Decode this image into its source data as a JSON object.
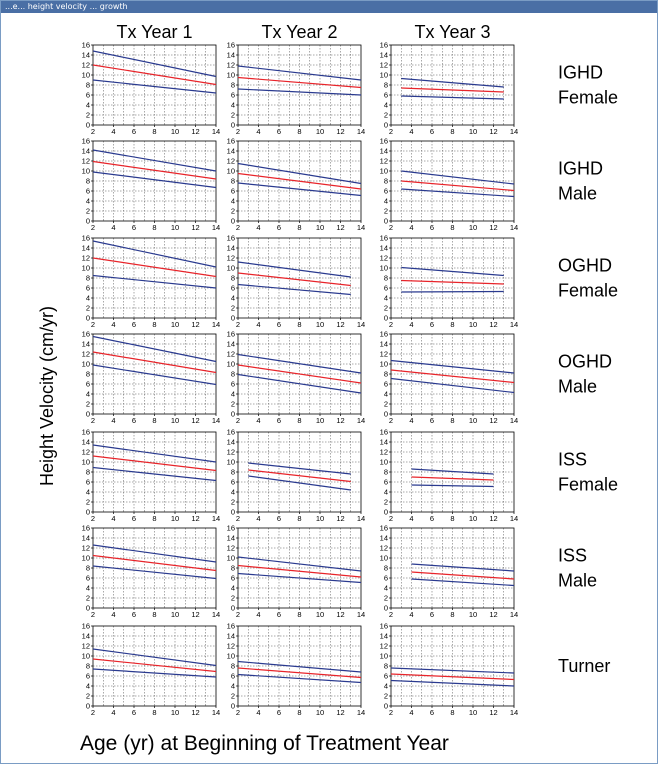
{
  "window": {
    "title": "...e... height velocity ... growth"
  },
  "figure": {
    "y_axis_label": "Height Velocity (cm/yr)",
    "x_axis_label": "Age (yr) at Beginning of Treatment Year",
    "column_titles": [
      "Tx Year 1",
      "Tx Year 2",
      "Tx Year 3"
    ],
    "row_labels": [
      [
        "IGHD",
        "Female"
      ],
      [
        "IGHD",
        "Male"
      ],
      [
        "OGHD",
        "Female"
      ],
      [
        "OGHD",
        "Male"
      ],
      [
        "ISS",
        "Female"
      ],
      [
        "ISS",
        "Male"
      ],
      [
        "Turner"
      ]
    ],
    "line_colors": {
      "median": "#e8242a",
      "bounds": "#2a3a8f",
      "grid": "#555555",
      "axis": "#000000"
    }
  },
  "chart_data": {
    "type": "line",
    "xlim": [
      2,
      14
    ],
    "ylim": [
      0,
      16
    ],
    "x_ticks": [
      2,
      4,
      6,
      8,
      10,
      12,
      14
    ],
    "y_ticks": [
      0,
      2,
      4,
      6,
      8,
      10,
      12,
      14,
      16
    ],
    "grid": true,
    "series_roles": [
      "upper",
      "median",
      "lower"
    ],
    "panels": [
      {
        "row": "IGHD Female",
        "column": "Tx Year 1",
        "x": [
          2,
          14
        ],
        "upper": [
          14.8,
          9.7
        ],
        "median": [
          12.0,
          8.1
        ],
        "lower": [
          9.0,
          6.4
        ]
      },
      {
        "row": "IGHD Female",
        "column": "Tx Year 2",
        "x": [
          2,
          14
        ],
        "upper": [
          11.8,
          9.0
        ],
        "median": [
          9.5,
          7.5
        ],
        "lower": [
          7.2,
          6.0
        ]
      },
      {
        "row": "IGHD Female",
        "column": "Tx Year 3",
        "x": [
          3,
          13
        ],
        "upper": [
          9.3,
          7.6
        ],
        "median": [
          7.4,
          6.6
        ],
        "lower": [
          5.8,
          5.2
        ]
      },
      {
        "row": "IGHD Male",
        "column": "Tx Year 1",
        "x": [
          2,
          14
        ],
        "upper": [
          14.2,
          10.0
        ],
        "median": [
          11.9,
          8.4
        ],
        "lower": [
          9.8,
          6.7
        ]
      },
      {
        "row": "IGHD Male",
        "column": "Tx Year 2",
        "x": [
          2,
          14
        ],
        "upper": [
          11.5,
          7.5
        ],
        "median": [
          9.5,
          6.4
        ],
        "lower": [
          7.6,
          5.1
        ]
      },
      {
        "row": "IGHD Male",
        "column": "Tx Year 3",
        "x": [
          3,
          14
        ],
        "upper": [
          10.0,
          7.4
        ],
        "median": [
          8.0,
          6.1
        ],
        "lower": [
          6.4,
          4.9
        ]
      },
      {
        "row": "OGHD Female",
        "column": "Tx Year 1",
        "x": [
          2,
          14
        ],
        "upper": [
          15.4,
          10.2
        ],
        "median": [
          12.0,
          8.3
        ],
        "lower": [
          8.5,
          6.0
        ]
      },
      {
        "row": "OGHD Female",
        "column": "Tx Year 2",
        "x": [
          2,
          13
        ],
        "upper": [
          11.2,
          8.2
        ],
        "median": [
          9.0,
          6.5
        ],
        "lower": [
          6.7,
          4.7
        ]
      },
      {
        "row": "OGHD Female",
        "column": "Tx Year 3",
        "x": [
          3,
          13
        ],
        "upper": [
          10.1,
          8.5
        ],
        "median": [
          7.5,
          6.8
        ],
        "lower": [
          5.2,
          5.3
        ]
      },
      {
        "row": "OGHD Male",
        "column": "Tx Year 1",
        "x": [
          2,
          14
        ],
        "upper": [
          15.5,
          10.5
        ],
        "median": [
          12.4,
          8.3
        ],
        "lower": [
          9.8,
          5.9
        ]
      },
      {
        "row": "OGHD Male",
        "column": "Tx Year 2",
        "x": [
          2,
          14
        ],
        "upper": [
          11.9,
          8.2
        ],
        "median": [
          9.8,
          6.2
        ],
        "lower": [
          7.9,
          4.2
        ]
      },
      {
        "row": "OGHD Male",
        "column": "Tx Year 3",
        "x": [
          2,
          14
        ],
        "upper": [
          10.7,
          8.2
        ],
        "median": [
          8.8,
          6.3
        ],
        "lower": [
          7.1,
          4.3
        ]
      },
      {
        "row": "ISS Female",
        "column": "Tx Year 1",
        "x": [
          2,
          14
        ],
        "upper": [
          13.4,
          10.0
        ],
        "median": [
          11.2,
          8.3
        ],
        "lower": [
          8.9,
          6.3
        ]
      },
      {
        "row": "ISS Female",
        "column": "Tx Year 2",
        "x": [
          3,
          13
        ],
        "upper": [
          9.8,
          7.6
        ],
        "median": [
          8.4,
          6.1
        ],
        "lower": [
          7.2,
          4.4
        ]
      },
      {
        "row": "ISS Female",
        "column": "Tx Year 3",
        "x": [
          4,
          12
        ],
        "upper": [
          8.6,
          7.6
        ],
        "median": [
          7.0,
          6.4
        ],
        "lower": [
          5.4,
          5.1
        ]
      },
      {
        "row": "ISS Male",
        "column": "Tx Year 1",
        "x": [
          2,
          14
        ],
        "upper": [
          12.6,
          9.2
        ],
        "median": [
          10.5,
          7.5
        ],
        "lower": [
          8.4,
          5.9
        ]
      },
      {
        "row": "ISS Male",
        "column": "Tx Year 2",
        "x": [
          2,
          14
        ],
        "upper": [
          10.2,
          7.4
        ],
        "median": [
          8.5,
          6.2
        ],
        "lower": [
          6.9,
          5.1
        ]
      },
      {
        "row": "ISS Male",
        "column": "Tx Year 3",
        "x": [
          4,
          14
        ],
        "upper": [
          8.8,
          7.4
        ],
        "median": [
          7.2,
          5.8
        ],
        "lower": [
          5.8,
          4.5
        ]
      },
      {
        "row": "Turner",
        "column": "Tx Year 1",
        "x": [
          2,
          14
        ],
        "upper": [
          11.4,
          8.1
        ],
        "median": [
          9.4,
          6.9
        ],
        "lower": [
          7.4,
          5.8
        ]
      },
      {
        "row": "Turner",
        "column": "Tx Year 2",
        "x": [
          2,
          14
        ],
        "upper": [
          8.9,
          6.8
        ],
        "median": [
          7.6,
          5.7
        ],
        "lower": [
          6.3,
          4.7
        ]
      },
      {
        "row": "Turner",
        "column": "Tx Year 3",
        "x": [
          2,
          14
        ],
        "upper": [
          7.6,
          6.6
        ],
        "median": [
          6.4,
          5.3
        ],
        "lower": [
          5.1,
          4.0
        ]
      }
    ]
  }
}
